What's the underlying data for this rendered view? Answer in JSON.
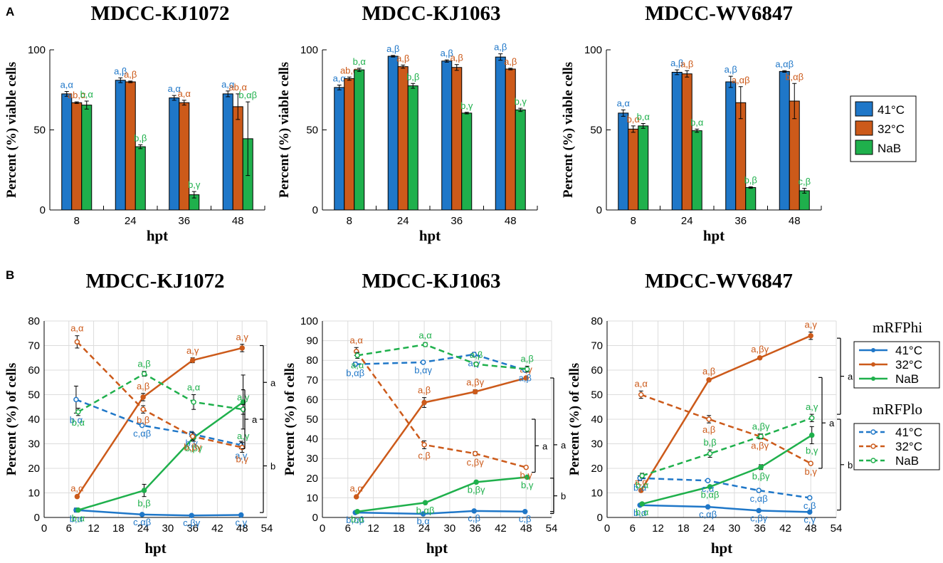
{
  "panels": {
    "A": "A",
    "B": "B"
  },
  "colors": {
    "c41": "#1f77c8",
    "c32": "#cc5a1a",
    "nab": "#1fb04c",
    "grid": "#dcdcdc"
  },
  "legendA": {
    "items": [
      "41°C",
      "32°C",
      "NaB"
    ]
  },
  "legendB": {
    "hi_title": "mRFPhi",
    "lo_title": "mRFPlo",
    "items": [
      "41°C",
      "32°C",
      "NaB"
    ]
  },
  "chart_data": [
    {
      "type": "bar",
      "title": "MDCC-KJ1072",
      "xlabel": "hpt",
      "ylabel": "Percent (%) viable cells",
      "ylim": [
        0,
        100
      ],
      "yticks": [
        0,
        50,
        100
      ],
      "categories": [
        "8",
        "24",
        "36",
        "48"
      ],
      "series": [
        {
          "name": "41°C",
          "values": [
            72.5,
            81,
            70,
            72.5
          ],
          "errors": [
            1.5,
            1.5,
            1.5,
            1.8
          ],
          "labels": [
            "a,α",
            "a,β",
            "a,α",
            "a,α"
          ]
        },
        {
          "name": "32°C",
          "values": [
            67,
            80,
            67,
            64.5
          ],
          "errors": [
            0.5,
            0.5,
            1.5,
            8
          ],
          "labels": [
            "ab,α",
            "a,β",
            "a,α",
            "ab,α"
          ]
        },
        {
          "name": "NaB",
          "values": [
            65.5,
            39.5,
            9.5,
            44.5
          ],
          "errors": [
            2.5,
            1.2,
            2,
            23
          ],
          "labels": [
            "b,α",
            "b,β",
            "b,γ",
            "b,αβ"
          ]
        }
      ]
    },
    {
      "type": "bar",
      "title": "MDCC-KJ1063",
      "xlabel": "hpt",
      "ylabel": "Percent (%) viable cells",
      "ylim": [
        0,
        100
      ],
      "yticks": [
        0,
        50,
        100
      ],
      "categories": [
        "8",
        "24",
        "36",
        "48"
      ],
      "series": [
        {
          "name": "41°C",
          "values": [
            76.5,
            96,
            93,
            95.5
          ],
          "errors": [
            1.5,
            0.5,
            0.7,
            2
          ],
          "labels": [
            "a,α",
            "a,β",
            "a,β",
            "a,β"
          ]
        },
        {
          "name": "32°C",
          "values": [
            82,
            89.5,
            89,
            88
          ],
          "errors": [
            1,
            1,
            1.8,
            0.5
          ],
          "labels": [
            "ab,α",
            "a,β",
            "a,β",
            "a,β"
          ]
        },
        {
          "name": "NaB",
          "values": [
            87.5,
            77.5,
            60.5,
            62.5
          ],
          "errors": [
            1,
            1.5,
            0.5,
            1
          ],
          "labels": [
            "b,α",
            "b,β",
            "b,γ",
            "b,γ"
          ]
        }
      ]
    },
    {
      "type": "bar",
      "title": "MDCC-WV6847",
      "xlabel": "hpt",
      "ylabel": "Percent (%) viable cells",
      "ylim": [
        0,
        100
      ],
      "yticks": [
        0,
        50,
        100
      ],
      "categories": [
        "8",
        "24",
        "36",
        "48"
      ],
      "series": [
        {
          "name": "41°C",
          "values": [
            60.5,
            86,
            80,
            86.5
          ],
          "errors": [
            2,
            1.5,
            3.5,
            0.5
          ],
          "labels": [
            "a,α",
            "a,β",
            "a,β",
            "a,αβ"
          ]
        },
        {
          "name": "32°C",
          "values": [
            50.5,
            85,
            67,
            68
          ],
          "errors": [
            2,
            2,
            10,
            11
          ],
          "labels": [
            "b,α",
            "a,β",
            "a,αβ",
            "b,αβ"
          ]
        },
        {
          "name": "NaB",
          "values": [
            52.5,
            49.5,
            14,
            12
          ],
          "errors": [
            1.5,
            1,
            0.5,
            1.5
          ],
          "labels": [
            "b,α",
            "b,α",
            "b,β",
            "c,β"
          ]
        }
      ]
    },
    {
      "type": "line",
      "title": "MDCC-KJ1072",
      "xlabel": "hpt",
      "ylabel": "Percent (%) of cells",
      "xlim": [
        0,
        54
      ],
      "xticks": [
        0,
        6,
        12,
        18,
        24,
        30,
        36,
        42,
        48,
        54
      ],
      "ylim": [
        0,
        80
      ],
      "yticks": [
        0,
        10,
        20,
        30,
        40,
        50,
        60,
        70,
        80
      ],
      "x": [
        8,
        24,
        36,
        48
      ],
      "series": [
        {
          "name": "mRFPhi 41°C",
          "values": [
            3,
            1.2,
            0.8,
            1
          ],
          "errors": [
            0.8,
            0.3,
            0.2,
            0.3
          ],
          "labels": [
            "b,α",
            "c,αβ",
            "c,βγ",
            "c,γ"
          ]
        },
        {
          "name": "mRFPhi 32°C",
          "values": [
            8.5,
            49,
            64,
            69
          ],
          "errors": [
            0.3,
            1.5,
            1,
            1.5
          ],
          "labels": [
            "a,α",
            "a,β",
            "a,γ",
            "a,γ"
          ]
        },
        {
          "name": "mRFPhi NaB",
          "values": [
            3,
            11,
            32.5,
            47
          ],
          "errors": [
            0.5,
            2.5,
            1.5,
            11
          ],
          "labels": [
            "b,α",
            "b,β",
            "b,βγ",
            "a,γ"
          ]
        },
        {
          "name": "mRFPlo 41°C",
          "values": [
            48,
            37.5,
            34,
            29.5
          ],
          "errors": [
            5.5,
            0.5,
            1,
            1.5
          ],
          "labels": [
            "b,α",
            "c,αβ",
            "b,γ",
            "a,γ"
          ]
        },
        {
          "name": "mRFPlo 32°C",
          "values": [
            71.5,
            44,
            33,
            28.5
          ],
          "errors": [
            2.5,
            1.5,
            1.5,
            2
          ],
          "labels": [
            "a,α",
            "b,β",
            "b,βγ",
            "b,γ"
          ]
        },
        {
          "name": "mRFPlo NaB",
          "values": [
            43,
            58.5,
            47,
            44
          ],
          "errors": [
            1.5,
            1,
            3,
            2
          ],
          "labels": [
            "b,α",
            "a,β",
            "a,α",
            "a,γ"
          ]
        }
      ],
      "brackets": [
        {
          "from": 70,
          "to": 40,
          "label": "a"
        },
        {
          "from": 52,
          "to": 28,
          "label": "a"
        },
        {
          "from": 40,
          "to": 2,
          "label": "b"
        }
      ]
    },
    {
      "type": "line",
      "title": "MDCC-KJ1063",
      "xlabel": "hpt",
      "ylabel": "Percent (%) of cells",
      "xlim": [
        0,
        54
      ],
      "xticks": [
        0,
        6,
        12,
        18,
        24,
        30,
        36,
        42,
        48,
        54
      ],
      "ylim": [
        0,
        100
      ],
      "yticks": [
        0,
        10,
        20,
        30,
        40,
        50,
        60,
        70,
        80,
        90,
        100
      ],
      "x": [
        8,
        24,
        36,
        48
      ],
      "series": [
        {
          "name": "mRFPhi 41°C",
          "values": [
            2.5,
            1.8,
            3.3,
            3
          ],
          "errors": [
            0.3,
            0.2,
            0.3,
            0.3
          ],
          "labels": [
            "b,αβ",
            "b,α",
            "c,β",
            "c,β"
          ]
        },
        {
          "name": "mRFPhi 32°C",
          "values": [
            10.5,
            58.5,
            64,
            71
          ],
          "errors": [
            0.5,
            2.5,
            1,
            0.5
          ],
          "labels": [
            "a,α",
            "a,β",
            "a,βγ",
            "a,γ"
          ]
        },
        {
          "name": "mRFPhi NaB",
          "values": [
            3,
            7.5,
            18,
            20.5
          ],
          "errors": [
            0.5,
            0.5,
            0.5,
            0.5
          ],
          "labels": [
            "b,α",
            "b,αβ",
            "b,βγ",
            "b,γ"
          ]
        },
        {
          "name": "mRFPlo 41°C",
          "values": [
            78,
            79,
            83,
            75
          ],
          "errors": [
            1,
            0.5,
            1,
            0.5
          ],
          "labels": [
            "b,αβ",
            "b,αγ",
            "a,γ",
            "a,β"
          ]
        },
        {
          "name": "mRFPlo 32°C",
          "values": [
            84.5,
            37,
            32.5,
            25.5
          ],
          "errors": [
            2,
            2,
            1,
            0.5
          ],
          "labels": [
            "a,α",
            "c,β",
            "c,βγ",
            "b,γ"
          ]
        },
        {
          "name": "mRFPlo NaB",
          "values": [
            82.5,
            88,
            78,
            75.5
          ],
          "errors": [
            1.5,
            1,
            1,
            1.5
          ],
          "labels": [
            "a,α",
            "a,α",
            "a,β",
            "a,β"
          ]
        }
      ],
      "brackets": [
        {
          "from": 71,
          "to": 3,
          "label": "a"
        },
        {
          "from": 50,
          "to": 23,
          "label": "a"
        },
        {
          "from": 20,
          "to": 2,
          "label": "b"
        }
      ]
    },
    {
      "type": "line",
      "title": "MDCC-WV6847",
      "xlabel": "hpt",
      "ylabel": "Percent (%) of cells",
      "xlim": [
        0,
        54
      ],
      "xticks": [
        0,
        6,
        12,
        18,
        24,
        30,
        36,
        42,
        48,
        54
      ],
      "ylim": [
        0,
        80
      ],
      "yticks": [
        0,
        10,
        20,
        30,
        40,
        50,
        60,
        70,
        80
      ],
      "x": [
        8,
        24,
        36,
        48
      ],
      "series": [
        {
          "name": "mRFPhi 41°C",
          "values": [
            5,
            4.3,
            2.8,
            2.2
          ],
          "errors": [
            0.3,
            0.3,
            0.3,
            0.3
          ],
          "labels": [
            "b,α",
            "c,αβ",
            "c,βγ",
            "c,γ"
          ]
        },
        {
          "name": "mRFPhi 32°C",
          "values": [
            11,
            56,
            65,
            74
          ],
          "errors": [
            0.5,
            0.5,
            0.5,
            1.5
          ],
          "labels": [
            "a,α",
            "a,β",
            "a,βγ",
            "a,γ"
          ]
        },
        {
          "name": "mRFPhi NaB",
          "values": [
            5.5,
            12.5,
            20.5,
            33.5
          ],
          "errors": [
            0.5,
            0.5,
            1,
            3.5
          ],
          "labels": [
            "b,α",
            "b,αβ",
            "b,βγ",
            "b,γ"
          ]
        },
        {
          "name": "mRFPlo 41°C",
          "values": [
            16,
            15,
            11,
            8
          ],
          "errors": [
            1,
            0.5,
            0.5,
            0.5
          ],
          "labels": [
            "b,α",
            "c,α",
            "c,αβ",
            "c,β"
          ]
        },
        {
          "name": "mRFPlo 32°C",
          "values": [
            50,
            40,
            33,
            22
          ],
          "errors": [
            1.5,
            1.5,
            1,
            0.5
          ],
          "labels": [
            "a,α",
            "a,β",
            "a,βγ",
            "b,γ"
          ]
        },
        {
          "name": "mRFPlo NaB",
          "values": [
            17,
            26,
            33,
            40.5
          ],
          "errors": [
            1,
            1.5,
            1,
            1.5
          ],
          "labels": [
            "b,α",
            "b,β",
            "a,βγ",
            "a,γ"
          ]
        }
      ],
      "brackets": [
        {
          "from": 73,
          "to": 42,
          "label": "a"
        },
        {
          "from": 57,
          "to": 20,
          "label": "a"
        },
        {
          "from": 40,
          "to": 3,
          "label": "b"
        }
      ]
    }
  ]
}
